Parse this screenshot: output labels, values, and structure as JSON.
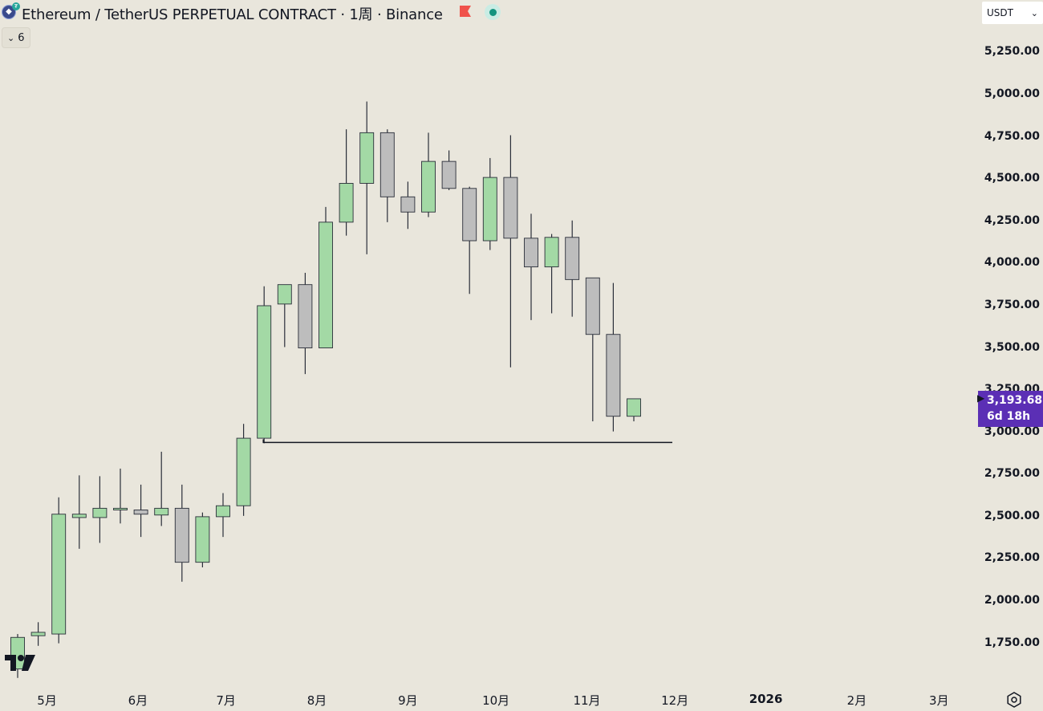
{
  "header": {
    "title": "Ethereum  /  TetherUS PERPETUAL CONTRACT · 1周 · Binance",
    "coin_icon": "ethereum-icon",
    "flag_icon": "flag-icon",
    "status_icon": "market-status-icon",
    "indicator_count": "6",
    "currency": "USDT"
  },
  "current_price": {
    "value": "3,193.68",
    "countdown": "6d 18h",
    "color": "#5b2fb5"
  },
  "colors": {
    "up": "#a3d9a5",
    "down": "#bdbdbd",
    "border": "#2a2e39",
    "bg": "#e9e6dc"
  },
  "chart_data": {
    "type": "candlestick",
    "ylim": [
      1600,
      5400
    ],
    "price_ticks": [
      "5,250.00",
      "5,000.00",
      "4,750.00",
      "4,500.00",
      "4,250.00",
      "4,000.00",
      "3,750.00",
      "3,500.00",
      "3,250.00",
      "3,000.00",
      "2,750.00",
      "2,500.00",
      "2,250.00",
      "2,000.00",
      "1,750.00"
    ],
    "price_tick_values": [
      5250,
      5000,
      4750,
      4500,
      4250,
      4000,
      3750,
      3500,
      3250,
      3000,
      2750,
      2500,
      2250,
      2000,
      1750
    ],
    "time_ticks": [
      "5月",
      "6月",
      "7月",
      "8月",
      "9月",
      "10月",
      "11月",
      "12月",
      "2026",
      "2月",
      "3月"
    ],
    "time_tick_dates": [
      "2025-05-01",
      "2025-06-01",
      "2025-07-01",
      "2025-08-01",
      "2025-09-01",
      "2025-10-01",
      "2025-11-01",
      "2025-12-01",
      "2026-01-01",
      "2026-02-01",
      "2026-03-01"
    ],
    "first_week": "2025-04-21",
    "candles": [
      {
        "o": 1593,
        "h": 1800,
        "l": 1540,
        "c": 1780
      },
      {
        "o": 1790,
        "h": 1870,
        "l": 1730,
        "c": 1810
      },
      {
        "o": 1800,
        "h": 2610,
        "l": 1745,
        "c": 2510
      },
      {
        "o": 2490,
        "h": 2740,
        "l": 2305,
        "c": 2510
      },
      {
        "o": 2490,
        "h": 2735,
        "l": 2340,
        "c": 2545
      },
      {
        "o": 2535,
        "h": 2780,
        "l": 2455,
        "c": 2545
      },
      {
        "o": 2535,
        "h": 2685,
        "l": 2375,
        "c": 2510
      },
      {
        "o": 2505,
        "h": 2880,
        "l": 2440,
        "c": 2545
      },
      {
        "o": 2545,
        "h": 2685,
        "l": 2110,
        "c": 2225
      },
      {
        "o": 2225,
        "h": 2520,
        "l": 2195,
        "c": 2495
      },
      {
        "o": 2495,
        "h": 2635,
        "l": 2375,
        "c": 2560
      },
      {
        "o": 2560,
        "h": 3045,
        "l": 2500,
        "c": 2960
      },
      {
        "o": 2960,
        "h": 3860,
        "l": 2930,
        "c": 3745
      },
      {
        "o": 3755,
        "h": 3870,
        "l": 3500,
        "c": 3870
      },
      {
        "o": 3870,
        "h": 3940,
        "l": 3340,
        "c": 3495
      },
      {
        "o": 3495,
        "h": 4330,
        "l": 3495,
        "c": 4240
      },
      {
        "o": 4240,
        "h": 4790,
        "l": 4160,
        "c": 4470
      },
      {
        "o": 4470,
        "h": 4955,
        "l": 4050,
        "c": 4770
      },
      {
        "o": 4770,
        "h": 4790,
        "l": 4240,
        "c": 4390
      },
      {
        "o": 4390,
        "h": 4480,
        "l": 4200,
        "c": 4300
      },
      {
        "o": 4300,
        "h": 4770,
        "l": 4270,
        "c": 4600
      },
      {
        "o": 4600,
        "h": 4665,
        "l": 4430,
        "c": 4440
      },
      {
        "o": 4440,
        "h": 4450,
        "l": 3815,
        "c": 4130
      },
      {
        "o": 4130,
        "h": 4620,
        "l": 4075,
        "c": 4505
      },
      {
        "o": 4505,
        "h": 4755,
        "l": 3380,
        "c": 4145
      },
      {
        "o": 4145,
        "h": 4290,
        "l": 3660,
        "c": 3975
      },
      {
        "o": 3975,
        "h": 4170,
        "l": 3700,
        "c": 4150
      },
      {
        "o": 4150,
        "h": 4250,
        "l": 3680,
        "c": 3900
      },
      {
        "o": 3910,
        "h": 3910,
        "l": 3060,
        "c": 3575
      },
      {
        "o": 3575,
        "h": 3880,
        "l": 3000,
        "c": 3090
      },
      {
        "o": 3090,
        "h": 3195,
        "l": 3060,
        "c": 3193.68
      }
    ],
    "support_level": 2935
  }
}
